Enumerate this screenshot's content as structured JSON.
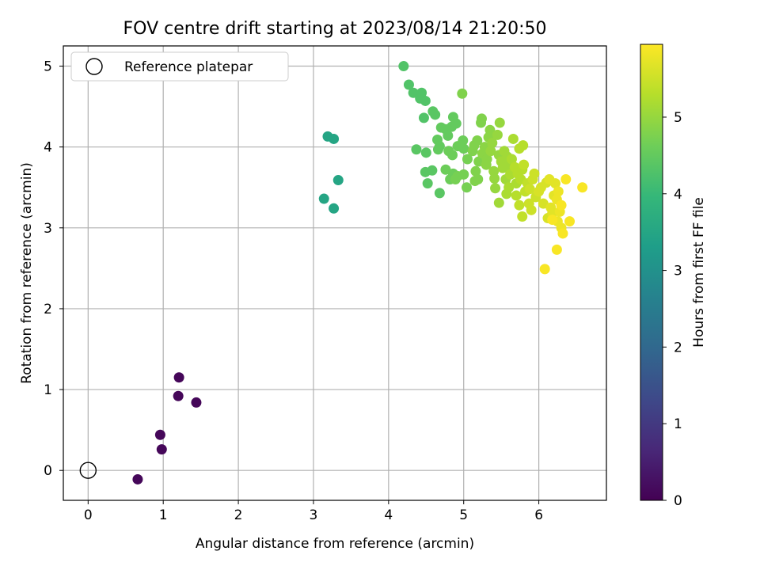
{
  "chart_data": {
    "type": "scatter",
    "title": "FOV centre drift starting at 2023/08/14 21:20:50",
    "xlabel": "Angular distance from reference (arcmin)",
    "ylabel": "Rotation from reference (arcmin)",
    "xlim": [
      -0.33,
      6.9
    ],
    "ylim": [
      -0.37,
      5.25
    ],
    "xticks": [
      0,
      1,
      2,
      3,
      4,
      5,
      6
    ],
    "yticks": [
      0,
      1,
      2,
      3,
      4,
      5
    ],
    "grid": true,
    "legend": {
      "position": "upper-left",
      "entries": [
        "Reference platepar"
      ]
    },
    "reference_point": {
      "x": 0,
      "y": 0,
      "marker": "open-circle"
    },
    "colorbar": {
      "label": "Hours from first FF file",
      "min": 0,
      "max": 5.95,
      "ticks": [
        0,
        1,
        2,
        3,
        4,
        5
      ],
      "colormap": "viridis",
      "colors": [
        "#440154",
        "#482878",
        "#3e4989",
        "#31688e",
        "#26828e",
        "#1f9e89",
        "#35b779",
        "#6ece58",
        "#b5de2b",
        "#fde725"
      ]
    },
    "series": [
      {
        "points": [
          {
            "x": 0.66,
            "y": -0.11,
            "c": 0.1
          },
          {
            "x": 0.98,
            "y": 0.26,
            "c": 0.1
          },
          {
            "x": 0.96,
            "y": 0.44,
            "c": 0.1
          },
          {
            "x": 1.2,
            "y": 0.92,
            "c": 0.1
          },
          {
            "x": 1.21,
            "y": 1.15,
            "c": 0.1
          },
          {
            "x": 1.44,
            "y": 0.84,
            "c": 0.1
          },
          {
            "x": 3.19,
            "y": 4.13,
            "c": 3.5
          },
          {
            "x": 3.27,
            "y": 4.1,
            "c": 3.5
          },
          {
            "x": 3.33,
            "y": 3.59,
            "c": 3.5
          },
          {
            "x": 3.14,
            "y": 3.36,
            "c": 3.5
          },
          {
            "x": 3.27,
            "y": 3.24,
            "c": 3.5
          },
          {
            "x": 4.2,
            "y": 5.0,
            "c": 4.3
          },
          {
            "x": 4.27,
            "y": 4.77,
            "c": 4.3
          },
          {
            "x": 4.33,
            "y": 4.67,
            "c": 4.3
          },
          {
            "x": 4.44,
            "y": 4.67,
            "c": 4.3
          },
          {
            "x": 4.42,
            "y": 4.6,
            "c": 4.3
          },
          {
            "x": 4.49,
            "y": 4.57,
            "c": 4.3
          },
          {
            "x": 4.47,
            "y": 4.36,
            "c": 4.3
          },
          {
            "x": 4.59,
            "y": 4.44,
            "c": 4.4
          },
          {
            "x": 4.62,
            "y": 4.4,
            "c": 4.4
          },
          {
            "x": 4.37,
            "y": 3.97,
            "c": 4.4
          },
          {
            "x": 4.5,
            "y": 3.93,
            "c": 4.4
          },
          {
            "x": 4.49,
            "y": 3.69,
            "c": 4.4
          },
          {
            "x": 4.58,
            "y": 3.71,
            "c": 4.4
          },
          {
            "x": 4.52,
            "y": 3.55,
            "c": 4.4
          },
          {
            "x": 4.68,
            "y": 3.43,
            "c": 4.4
          },
          {
            "x": 4.7,
            "y": 4.24,
            "c": 4.5
          },
          {
            "x": 4.76,
            "y": 4.22,
            "c": 4.5
          },
          {
            "x": 4.84,
            "y": 4.25,
            "c": 4.5
          },
          {
            "x": 4.86,
            "y": 4.37,
            "c": 4.5
          },
          {
            "x": 4.9,
            "y": 4.29,
            "c": 4.5
          },
          {
            "x": 4.79,
            "y": 4.14,
            "c": 4.5
          },
          {
            "x": 4.65,
            "y": 4.09,
            "c": 4.5
          },
          {
            "x": 4.68,
            "y": 4.01,
            "c": 4.5
          },
          {
            "x": 4.66,
            "y": 3.97,
            "c": 4.5
          },
          {
            "x": 4.8,
            "y": 3.95,
            "c": 4.6
          },
          {
            "x": 4.85,
            "y": 3.9,
            "c": 4.6
          },
          {
            "x": 4.92,
            "y": 4.01,
            "c": 4.6
          },
          {
            "x": 4.99,
            "y": 4.08,
            "c": 4.6
          },
          {
            "x": 5.0,
            "y": 3.98,
            "c": 4.6
          },
          {
            "x": 4.98,
            "y": 4.66,
            "c": 4.8
          },
          {
            "x": 4.76,
            "y": 3.72,
            "c": 4.6
          },
          {
            "x": 4.82,
            "y": 3.6,
            "c": 4.6
          },
          {
            "x": 4.86,
            "y": 3.67,
            "c": 4.6
          },
          {
            "x": 4.92,
            "y": 3.64,
            "c": 4.7
          },
          {
            "x": 4.89,
            "y": 3.6,
            "c": 4.7
          },
          {
            "x": 5.0,
            "y": 3.66,
            "c": 4.7
          },
          {
            "x": 5.04,
            "y": 3.5,
            "c": 4.7
          },
          {
            "x": 5.05,
            "y": 3.85,
            "c": 4.7
          },
          {
            "x": 5.12,
            "y": 3.95,
            "c": 4.8
          },
          {
            "x": 5.14,
            "y": 4.02,
            "c": 4.8
          },
          {
            "x": 5.18,
            "y": 4.08,
            "c": 4.8
          },
          {
            "x": 5.23,
            "y": 4.3,
            "c": 4.8
          },
          {
            "x": 5.24,
            "y": 4.35,
            "c": 4.8
          },
          {
            "x": 5.2,
            "y": 3.82,
            "c": 4.8
          },
          {
            "x": 5.16,
            "y": 3.7,
            "c": 4.8
          },
          {
            "x": 5.15,
            "y": 3.58,
            "c": 4.8
          },
          {
            "x": 5.19,
            "y": 3.6,
            "c": 4.8
          },
          {
            "x": 5.25,
            "y": 3.92,
            "c": 4.9
          },
          {
            "x": 5.28,
            "y": 4.0,
            "c": 4.9
          },
          {
            "x": 5.31,
            "y": 3.85,
            "c": 4.9
          },
          {
            "x": 5.3,
            "y": 3.78,
            "c": 4.9
          },
          {
            "x": 5.35,
            "y": 4.21,
            "c": 4.9
          },
          {
            "x": 5.33,
            "y": 4.12,
            "c": 4.9
          },
          {
            "x": 5.38,
            "y": 4.05,
            "c": 5.0
          },
          {
            "x": 5.36,
            "y": 3.95,
            "c": 5.0
          },
          {
            "x": 5.4,
            "y": 3.7,
            "c": 5.0
          },
          {
            "x": 5.41,
            "y": 3.61,
            "c": 5.0
          },
          {
            "x": 5.42,
            "y": 3.49,
            "c": 5.0
          },
          {
            "x": 5.45,
            "y": 4.15,
            "c": 5.0
          },
          {
            "x": 5.48,
            "y": 4.3,
            "c": 5.0
          },
          {
            "x": 5.47,
            "y": 3.9,
            "c": 5.0
          },
          {
            "x": 5.5,
            "y": 3.82,
            "c": 5.1
          },
          {
            "x": 5.52,
            "y": 3.74,
            "c": 5.1
          },
          {
            "x": 5.54,
            "y": 3.95,
            "c": 5.1
          },
          {
            "x": 5.56,
            "y": 3.6,
            "c": 5.1
          },
          {
            "x": 5.47,
            "y": 3.31,
            "c": 5.1
          },
          {
            "x": 5.58,
            "y": 3.88,
            "c": 5.1
          },
          {
            "x": 5.6,
            "y": 3.77,
            "c": 5.1
          },
          {
            "x": 5.62,
            "y": 3.66,
            "c": 5.2
          },
          {
            "x": 5.64,
            "y": 3.85,
            "c": 5.2
          },
          {
            "x": 5.66,
            "y": 4.1,
            "c": 5.2
          },
          {
            "x": 5.6,
            "y": 3.5,
            "c": 5.2
          },
          {
            "x": 5.57,
            "y": 3.42,
            "c": 5.2
          },
          {
            "x": 5.7,
            "y": 3.55,
            "c": 5.2
          },
          {
            "x": 5.68,
            "y": 3.75,
            "c": 5.3
          },
          {
            "x": 5.72,
            "y": 3.67,
            "c": 5.3
          },
          {
            "x": 5.74,
            "y": 3.98,
            "c": 5.3
          },
          {
            "x": 5.76,
            "y": 3.6,
            "c": 5.3
          },
          {
            "x": 5.78,
            "y": 3.72,
            "c": 5.3
          },
          {
            "x": 5.79,
            "y": 4.02,
            "c": 5.3
          },
          {
            "x": 5.7,
            "y": 3.4,
            "c": 5.3
          },
          {
            "x": 5.74,
            "y": 3.28,
            "c": 5.4
          },
          {
            "x": 5.78,
            "y": 3.14,
            "c": 5.4
          },
          {
            "x": 5.82,
            "y": 3.45,
            "c": 5.4
          },
          {
            "x": 5.8,
            "y": 3.78,
            "c": 5.4
          },
          {
            "x": 5.85,
            "y": 3.55,
            "c": 5.4
          },
          {
            "x": 5.87,
            "y": 3.3,
            "c": 5.5
          },
          {
            "x": 5.88,
            "y": 3.48,
            "c": 5.5
          },
          {
            "x": 5.9,
            "y": 3.22,
            "c": 5.5
          },
          {
            "x": 5.92,
            "y": 3.6,
            "c": 5.5
          },
          {
            "x": 5.94,
            "y": 3.67,
            "c": 5.5
          },
          {
            "x": 5.96,
            "y": 3.38,
            "c": 5.5
          },
          {
            "x": 6.0,
            "y": 3.45,
            "c": 5.6
          },
          {
            "x": 6.03,
            "y": 3.5,
            "c": 5.6
          },
          {
            "x": 6.06,
            "y": 3.3,
            "c": 5.6
          },
          {
            "x": 6.1,
            "y": 3.56,
            "c": 5.6
          },
          {
            "x": 6.12,
            "y": 3.12,
            "c": 5.6
          },
          {
            "x": 6.14,
            "y": 3.6,
            "c": 5.7
          },
          {
            "x": 6.16,
            "y": 3.25,
            "c": 5.7
          },
          {
            "x": 6.18,
            "y": 3.18,
            "c": 5.7
          },
          {
            "x": 6.2,
            "y": 3.4,
            "c": 5.7
          },
          {
            "x": 6.22,
            "y": 3.55,
            "c": 5.7
          },
          {
            "x": 6.24,
            "y": 3.35,
            "c": 5.8
          },
          {
            "x": 6.26,
            "y": 3.45,
            "c": 5.8
          },
          {
            "x": 6.25,
            "y": 3.08,
            "c": 5.8
          },
          {
            "x": 6.28,
            "y": 3.2,
            "c": 5.8
          },
          {
            "x": 6.3,
            "y": 3.0,
            "c": 5.8
          },
          {
            "x": 6.32,
            "y": 2.93,
            "c": 5.9
          },
          {
            "x": 6.36,
            "y": 3.6,
            "c": 5.9
          },
          {
            "x": 6.41,
            "y": 3.08,
            "c": 5.9
          },
          {
            "x": 6.24,
            "y": 2.73,
            "c": 5.9
          },
          {
            "x": 6.08,
            "y": 2.49,
            "c": 5.9
          },
          {
            "x": 6.58,
            "y": 3.5,
            "c": 5.9
          },
          {
            "x": 6.3,
            "y": 3.28,
            "c": 5.9
          },
          {
            "x": 6.18,
            "y": 3.1,
            "c": 5.9
          }
        ]
      }
    ]
  }
}
